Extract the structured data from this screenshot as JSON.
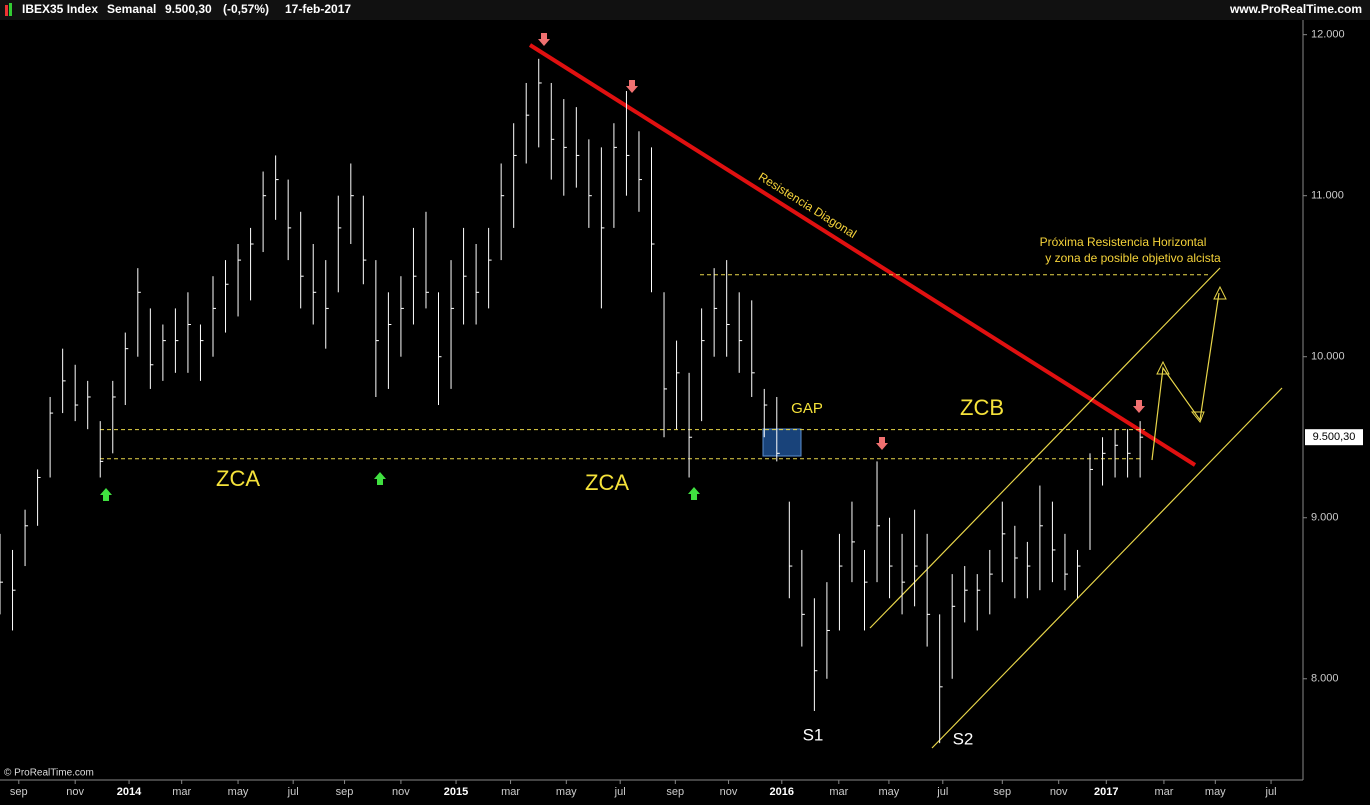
{
  "chart_data": {
    "type": "hlc",
    "title": "IBEX35 Index",
    "period": "Semanal",
    "last_price": {
      "value": 9500.3,
      "label": "9.500,30"
    },
    "change": "(-0,57%)",
    "date": "17-feb-2017",
    "source_top": "www.ProRealTime.com",
    "source_bottom": "© ProRealTime.com",
    "color": "#ffffff",
    "level_color": "#e8d64a",
    "xlim": [
      0,
      208
    ],
    "ylim": [
      7390,
      12060
    ],
    "yticks": [
      {
        "value": 8000,
        "label": "8.000"
      },
      {
        "value": 9000,
        "label": "9.000"
      },
      {
        "value": 10000,
        "label": "10.000"
      },
      {
        "value": 11000,
        "label": "11.000"
      },
      {
        "value": 12000,
        "label": "12.000"
      }
    ],
    "xticks": [
      {
        "value": 3,
        "label": "sep"
      },
      {
        "value": 12,
        "label": "nov"
      },
      {
        "value": 20.6,
        "label": "2014"
      },
      {
        "value": 29,
        "label": "mar"
      },
      {
        "value": 38,
        "label": "may"
      },
      {
        "value": 46.8,
        "label": "jul"
      },
      {
        "value": 55,
        "label": "sep"
      },
      {
        "value": 64,
        "label": "nov"
      },
      {
        "value": 72.8,
        "label": "2015"
      },
      {
        "value": 81.5,
        "label": "mar"
      },
      {
        "value": 90.4,
        "label": "may"
      },
      {
        "value": 99,
        "label": "jul"
      },
      {
        "value": 107.8,
        "label": "sep"
      },
      {
        "value": 116.3,
        "label": "nov"
      },
      {
        "value": 124.8,
        "label": "2016"
      },
      {
        "value": 133.9,
        "label": "mar"
      },
      {
        "value": 141.9,
        "label": "may"
      },
      {
        "value": 150.5,
        "label": "jul"
      },
      {
        "value": 160,
        "label": "sep"
      },
      {
        "value": 169,
        "label": "nov"
      },
      {
        "value": 176.6,
        "label": "2017"
      },
      {
        "value": 185.8,
        "label": "mar"
      },
      {
        "value": 194,
        "label": "may"
      },
      {
        "value": 202.9,
        "label": "jul"
      }
    ],
    "levels": [
      9547,
      9366,
      10509
    ],
    "annotations": [
      "ZCA",
      "ZCA",
      "GAP",
      "ZCB",
      "S1",
      "S2",
      "Resistencia Diagonal",
      "Próxima Resistencia Horizontal",
      "y zona de posible objetivo alcista"
    ],
    "x": [
      0,
      2,
      4,
      6,
      8,
      10,
      12,
      14,
      16,
      18,
      20,
      22,
      24,
      26,
      28,
      30,
      32,
      34,
      36,
      38,
      40,
      42,
      44,
      46,
      48,
      50,
      52,
      54,
      56,
      58,
      60,
      62,
      64,
      66,
      68,
      70,
      72,
      74,
      76,
      78,
      80,
      82,
      84,
      86,
      88,
      90,
      92,
      94,
      96,
      98,
      100,
      102,
      104,
      106,
      108,
      110,
      112,
      114,
      116,
      118,
      120,
      122,
      124,
      126,
      128,
      130,
      132,
      134,
      136,
      138,
      140,
      142,
      144,
      146,
      148,
      150,
      152,
      154,
      156,
      158,
      160,
      162,
      164,
      166,
      168,
      170,
      172,
      174,
      176,
      178,
      180,
      182
    ],
    "high": [
      8900,
      8800,
      9050,
      9300,
      9750,
      10050,
      9950,
      9850,
      9600,
      9850,
      10150,
      10550,
      10300,
      10200,
      10300,
      10400,
      10200,
      10500,
      10600,
      10700,
      10800,
      11150,
      11250,
      11100,
      10900,
      10700,
      10600,
      11000,
      11200,
      11000,
      10600,
      10400,
      10500,
      10800,
      10900,
      10400,
      10600,
      10800,
      10700,
      10800,
      11200,
      11450,
      11700,
      11850,
      11700,
      11600,
      11550,
      11350,
      11300,
      11450,
      11650,
      11400,
      11300,
      10400,
      10100,
      9900,
      10300,
      10550,
      10600,
      10400,
      10350,
      9800,
      9750,
      9100,
      8800,
      8500,
      8600,
      8900,
      9100,
      8800,
      9350,
      9000,
      8900,
      9050,
      8900,
      8400,
      8650,
      8700,
      8650,
      8800,
      9100,
      8950,
      8850,
      9200,
      9100,
      8900,
      8800,
      9400,
      9500,
      9550,
      9550,
      9600
    ],
    "low": [
      8400,
      8300,
      8700,
      8950,
      9250,
      9650,
      9600,
      9550,
      9250,
      9400,
      9700,
      10000,
      9800,
      9850,
      9900,
      9900,
      9850,
      10000,
      10150,
      10250,
      10350,
      10650,
      10850,
      10600,
      10300,
      10200,
      10050,
      10400,
      10700,
      10450,
      9750,
      9800,
      10000,
      10200,
      10300,
      9700,
      9800,
      10200,
      10200,
      10300,
      10600,
      10800,
      11200,
      11300,
      11100,
      11000,
      11050,
      10800,
      10300,
      10800,
      11000,
      10900,
      10400,
      9500,
      9550,
      9250,
      9600,
      10000,
      10000,
      9900,
      9750,
      9500,
      9350,
      8500,
      8200,
      7800,
      8000,
      8300,
      8600,
      8300,
      8600,
      8500,
      8400,
      8450,
      8200,
      7600,
      8000,
      8350,
      8300,
      8400,
      8600,
      8500,
      8500,
      8550,
      8600,
      8550,
      8500,
      8800,
      9200,
      9250,
      9250,
      9250
    ],
    "close": [
      8600,
      8550,
      8950,
      9250,
      9650,
      9850,
      9700,
      9750,
      9350,
      9750,
      10050,
      10400,
      9950,
      10100,
      10100,
      10200,
      10100,
      10300,
      10450,
      10600,
      10700,
      11000,
      11100,
      10800,
      10500,
      10400,
      10300,
      10800,
      11000,
      10600,
      10100,
      10200,
      10300,
      10500,
      10400,
      10000,
      10300,
      10500,
      10400,
      10600,
      11000,
      11250,
      11500,
      11700,
      11350,
      11300,
      11250,
      11000,
      10800,
      11300,
      11250,
      11100,
      10700,
      9800,
      9900,
      9500,
      10100,
      10300,
      10200,
      10100,
      9900,
      9700,
      9400,
      8700,
      8400,
      8050,
      8300,
      8700,
      8850,
      8600,
      8950,
      8700,
      8600,
      8700,
      8400,
      7950,
      8450,
      8550,
      8550,
      8650,
      8900,
      8750,
      8700,
      8950,
      8800,
      8650,
      8700,
      9300,
      9400,
      9450,
      9400,
      9500.3
    ]
  }
}
